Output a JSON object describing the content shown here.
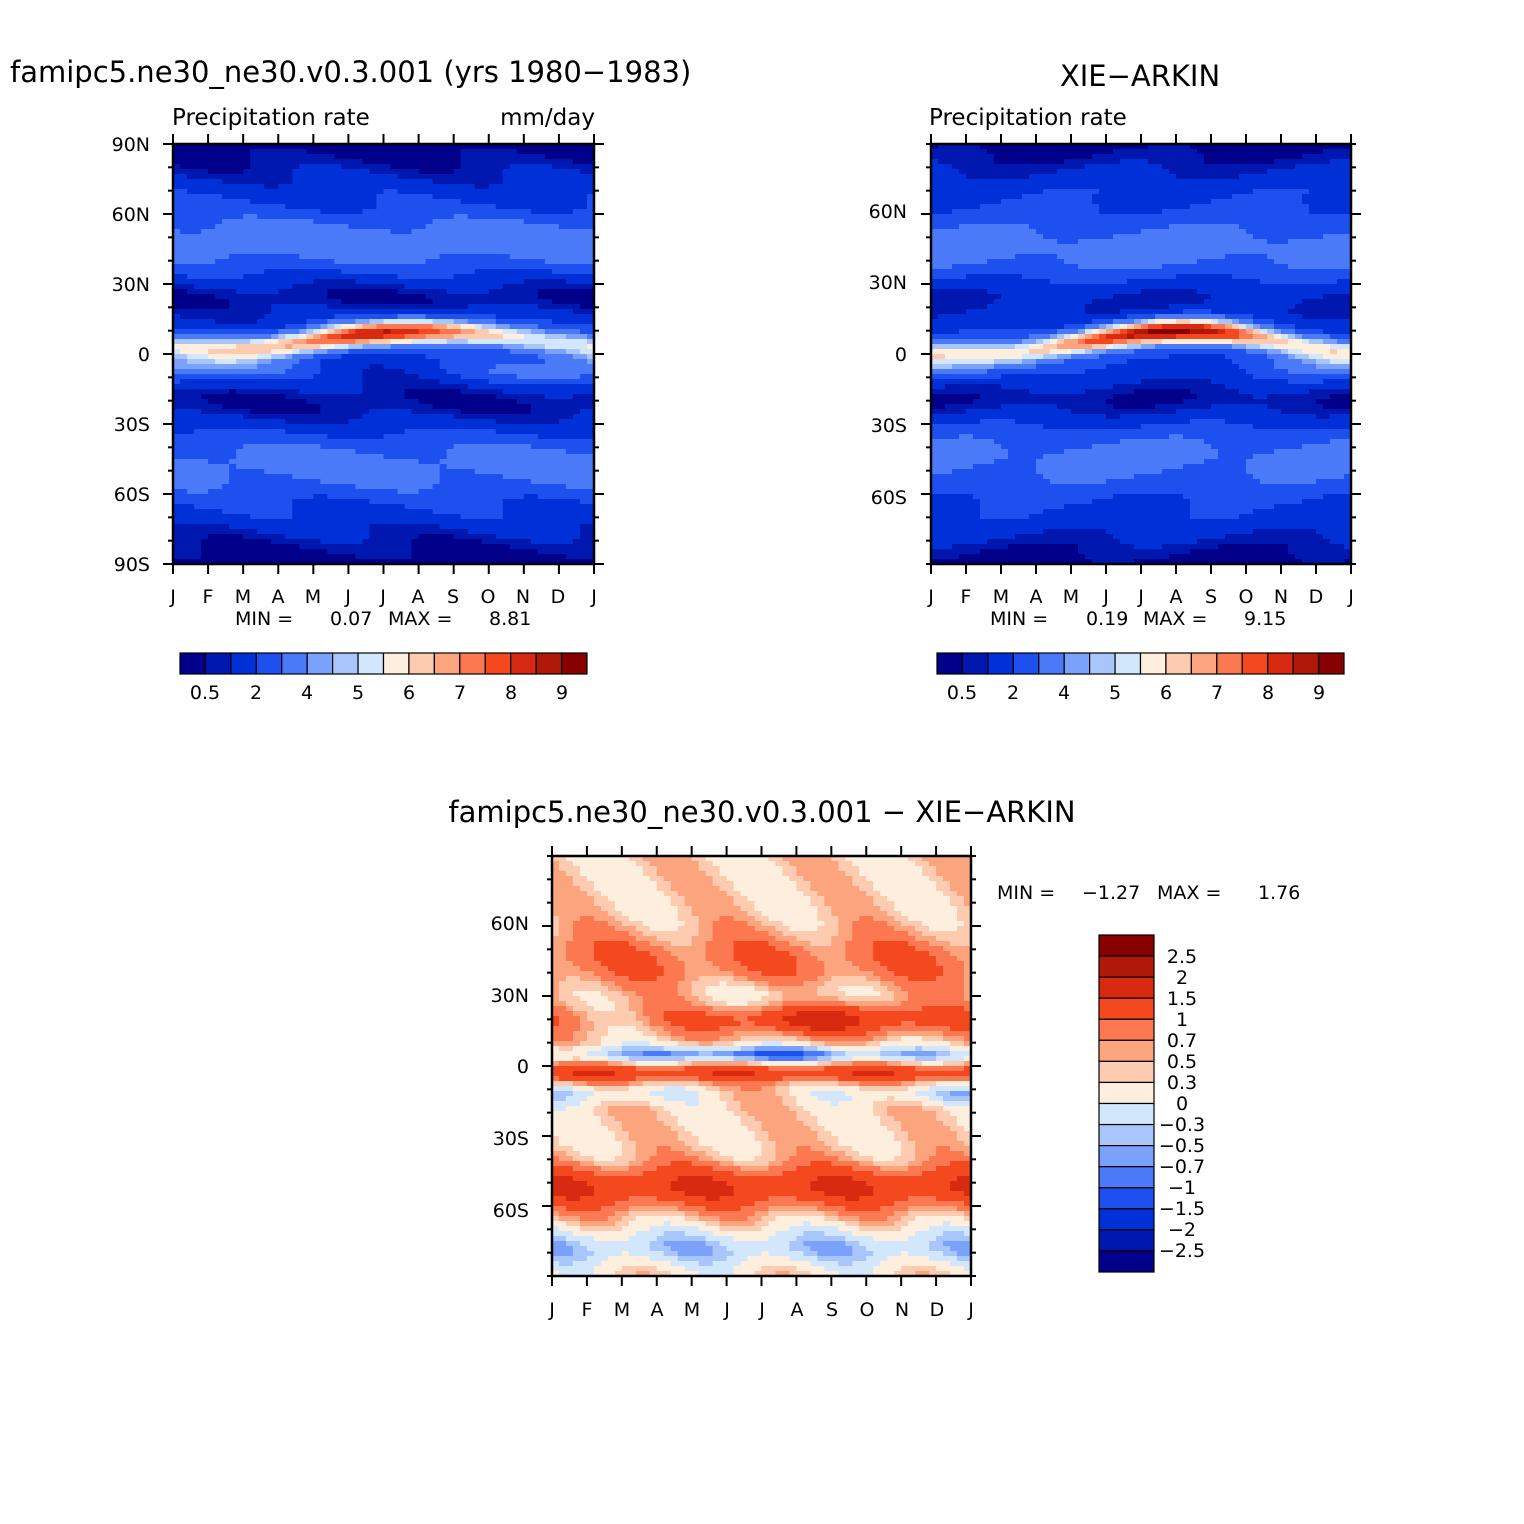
{
  "chart_data": [
    {
      "type": "heatmap",
      "title": "famipc5.ne30_ne30.v0.3.001 (yrs 1980-1983)",
      "subtitle_left": "Precipitation rate",
      "subtitle_right": "mm/day",
      "x_ticks": [
        "J",
        "F",
        "M",
        "A",
        "M",
        "J",
        "J",
        "A",
        "S",
        "O",
        "N",
        "D",
        "J"
      ],
      "y_ticks": [
        "90N",
        "60N",
        "30N",
        "0",
        "30S",
        "60S",
        "90S"
      ],
      "ylim": [
        -90,
        90
      ],
      "min_label": "MIN =",
      "min_value": "0.07",
      "max_label": "MAX =",
      "max_value": "8.81",
      "colorbar_labels": [
        "0.5",
        "2",
        "4",
        "5",
        "6",
        "7",
        "8",
        "9"
      ],
      "z_min": 0.07,
      "z_max": 8.81
    },
    {
      "type": "heatmap",
      "title": "XIE-ARKIN",
      "subtitle_left": "Precipitation rate",
      "subtitle_right": "",
      "x_ticks": [
        "J",
        "F",
        "M",
        "A",
        "M",
        "J",
        "J",
        "A",
        "S",
        "O",
        "N",
        "D",
        "J"
      ],
      "y_ticks": [
        "60N",
        "30N",
        "0",
        "30S",
        "60S"
      ],
      "ylim": [
        -90,
        90
      ],
      "min_label": "MIN =",
      "min_value": "0.19",
      "max_label": "MAX =",
      "max_value": "9.15",
      "colorbar_labels": [
        "0.5",
        "2",
        "4",
        "5",
        "6",
        "7",
        "8",
        "9"
      ],
      "z_min": 0.19,
      "z_max": 9.15
    },
    {
      "type": "heatmap",
      "title": "famipc5.ne30_ne30.v0.3.001 - XIE-ARKIN",
      "x_ticks": [
        "J",
        "F",
        "M",
        "A",
        "M",
        "J",
        "J",
        "A",
        "S",
        "O",
        "N",
        "D",
        "J"
      ],
      "y_ticks": [
        "60N",
        "30N",
        "0",
        "30S",
        "60S"
      ],
      "ylim": [
        -90,
        90
      ],
      "min_label": "MIN =",
      "min_value": "-1.27",
      "max_label": "MAX =",
      "max_value": "1.76",
      "colorbar_labels": [
        "2.5",
        "2",
        "1.5",
        "1",
        "0.7",
        "0.5",
        "0.3",
        "0",
        "-0.3",
        "-0.5",
        "-0.7",
        "-1",
        "-1.5",
        "-2",
        "-2.5"
      ],
      "z_min": -1.27,
      "z_max": 1.76
    }
  ],
  "colors": {
    "abs_palette": [
      "#00008a",
      "#0018b0",
      "#0030d8",
      "#1e50f0",
      "#4a7af8",
      "#7aa2fa",
      "#a8c6fc",
      "#d2e6fc",
      "#feeede",
      "#fdcbb0",
      "#fca47e",
      "#fc7850",
      "#f4481e",
      "#d82a10",
      "#b01808",
      "#880000"
    ],
    "diff_palette": [
      "#00008a",
      "#0018b0",
      "#0030d8",
      "#1e50f0",
      "#4a7af8",
      "#7aa2fa",
      "#a8c6fc",
      "#d2e6fc",
      "#feeede",
      "#fdcbb0",
      "#fca47e",
      "#fc7850",
      "#f4481e",
      "#d82a10",
      "#b01808",
      "#880000"
    ]
  }
}
